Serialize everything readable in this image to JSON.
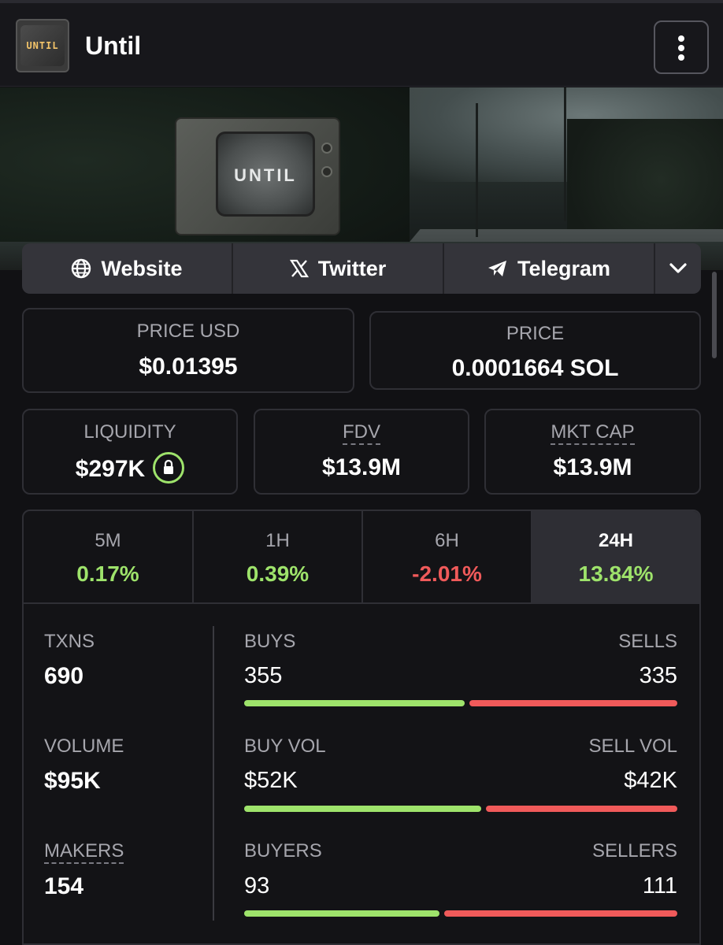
{
  "header": {
    "logo_text": "UNTIL",
    "title": "Until",
    "menu_icon": "more-vertical-icon"
  },
  "banner": {
    "tv_text": "UNTIL"
  },
  "links": [
    {
      "label": "Website",
      "icon": "globe-icon"
    },
    {
      "label": "Twitter",
      "icon": "x-logo-icon"
    },
    {
      "label": "Telegram",
      "icon": "telegram-icon"
    }
  ],
  "links_expand_icon": "chevron-down-icon",
  "price": {
    "usd_label": "PRICE USD",
    "usd_value": "$0.01395",
    "native_label": "PRICE",
    "native_value": "0.0001664 SOL"
  },
  "metrics": {
    "liquidity_label": "LIQUIDITY",
    "liquidity_value": "$297K",
    "fdv_label": "FDV",
    "fdv_value": "$13.9M",
    "mktcap_label": "MKT CAP",
    "mktcap_value": "$13.9M"
  },
  "timeframes": [
    {
      "label": "5M",
      "value": "0.17%",
      "trend": "up"
    },
    {
      "label": "1H",
      "value": "0.39%",
      "trend": "up"
    },
    {
      "label": "6H",
      "value": "-2.01%",
      "trend": "down"
    },
    {
      "label": "24H",
      "value": "13.84%",
      "trend": "up",
      "active": true
    }
  ],
  "stats": {
    "txns_label": "TXNS",
    "txns_value": "690",
    "volume_label": "VOLUME",
    "volume_value": "$95K",
    "makers_label": "MAKERS",
    "makers_value": "154",
    "buys_label": "BUYS",
    "buys_value": "355",
    "sells_label": "SELLS",
    "sells_value": "335",
    "buy_vol_label": "BUY VOL",
    "buy_vol_value": "$52K",
    "sell_vol_label": "SELL VOL",
    "sell_vol_value": "$42K",
    "buyers_label": "BUYERS",
    "buyers_value": "93",
    "sellers_label": "SELLERS",
    "sellers_value": "111"
  },
  "bar_ratios": {
    "txns_buy_fraction": 0.514,
    "volume_buy_fraction": 0.553,
    "makers_buy_fraction": 0.456
  },
  "colors": {
    "positive": "#9ee36b",
    "negative": "#f05a5a",
    "background": "#111114"
  }
}
